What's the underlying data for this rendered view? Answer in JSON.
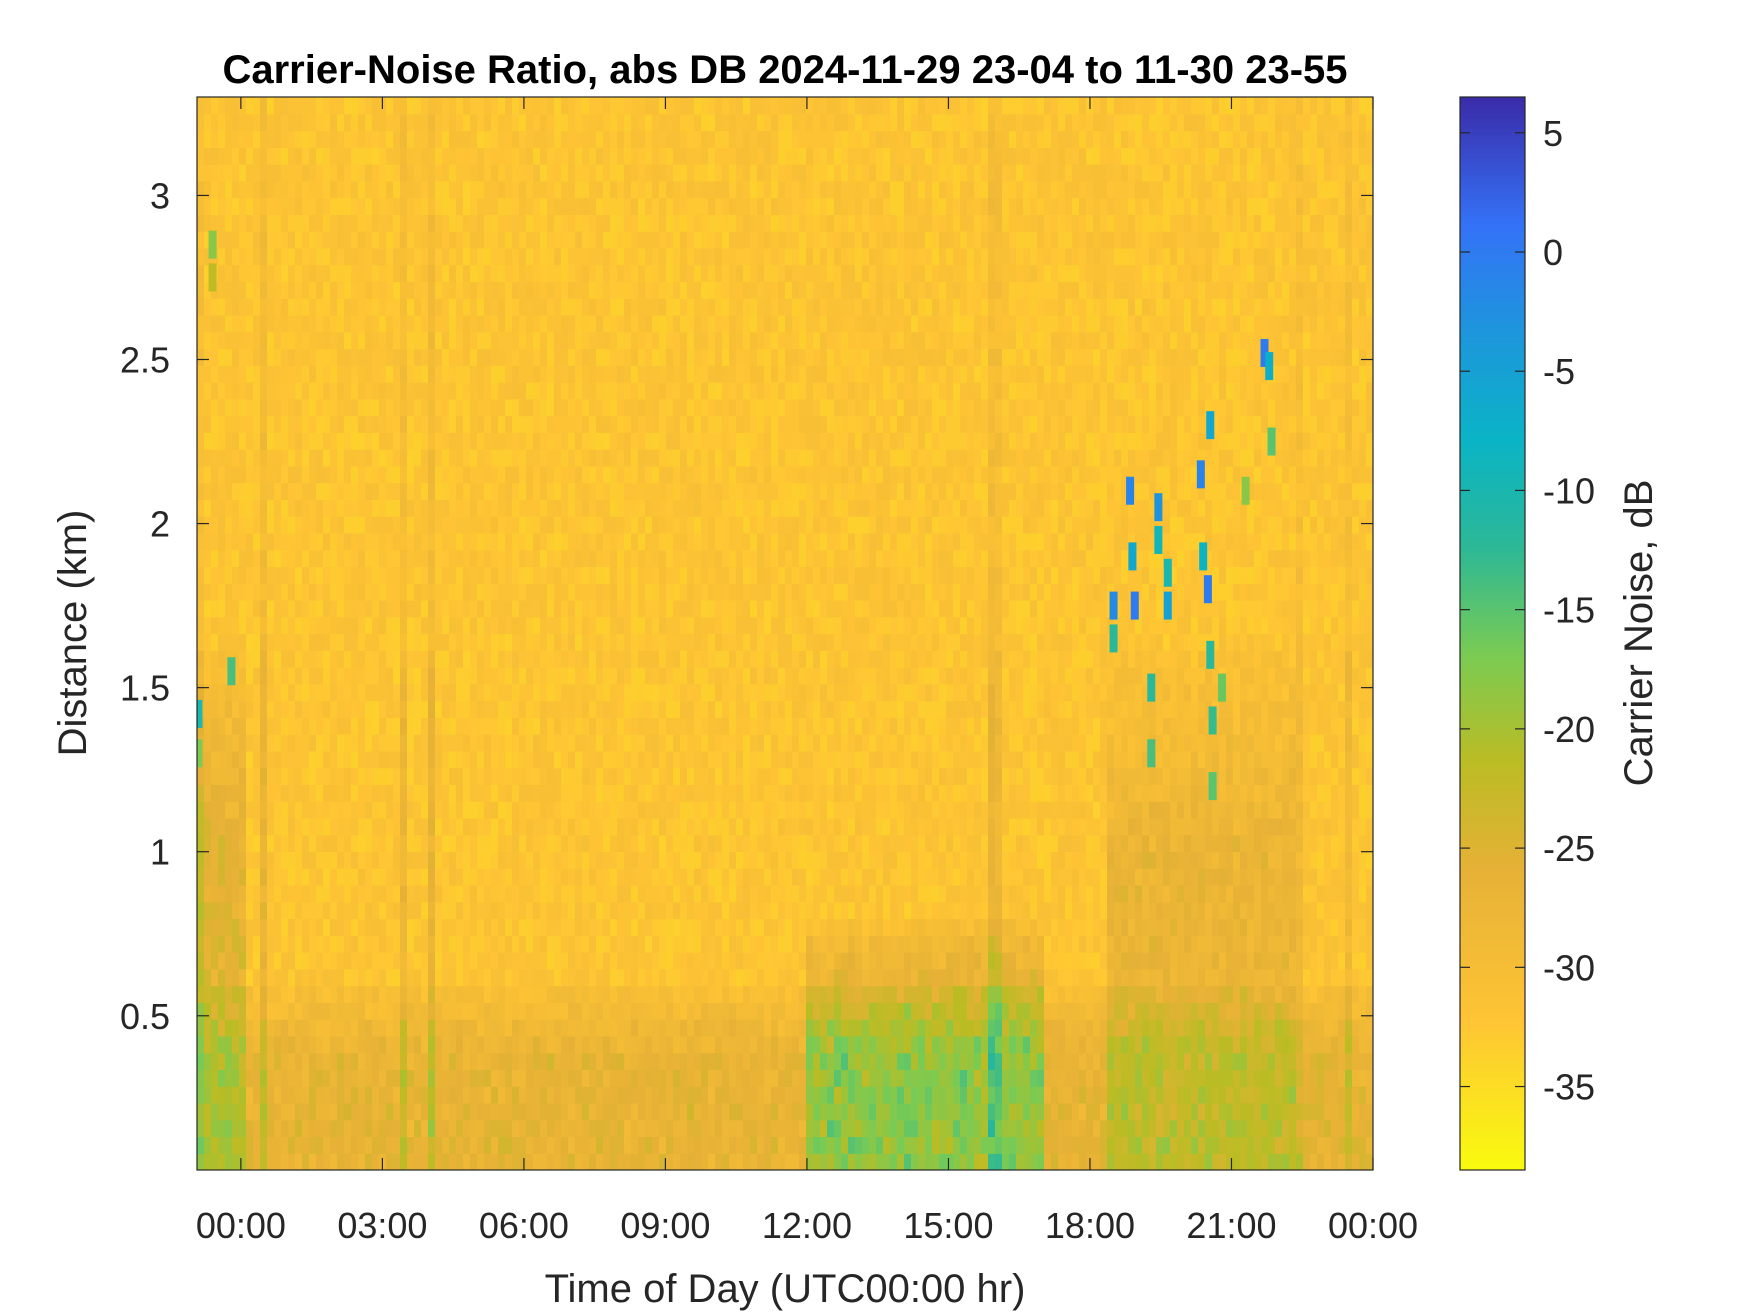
{
  "chart_data": {
    "type": "heatmap",
    "title": "Carrier-Noise Ratio, abs DB 2024-11-29 23-04 to 11-30 23-55",
    "xlabel": "Time of Day (UTC00:00 hr)",
    "ylabel": "Distance (km)",
    "x_ticks": [
      "00:00",
      "03:00",
      "06:00",
      "09:00",
      "12:00",
      "15:00",
      "18:00",
      "21:00",
      "00:00"
    ],
    "x_tick_hours": [
      0,
      3,
      6,
      9,
      12,
      15,
      18,
      21,
      24
    ],
    "xlim_hours": [
      -0.93,
      24.0
    ],
    "y_ticks": [
      "0.5",
      "1",
      "1.5",
      "2",
      "2.5",
      "3"
    ],
    "y_tick_values": [
      0.5,
      1,
      1.5,
      2,
      2.5,
      3
    ],
    "ylim": [
      0.03,
      3.3
    ],
    "colorbar": {
      "label": "Carrier Noise, dB",
      "ticks": [
        "5",
        "0",
        "-5",
        "-10",
        "-15",
        "-20",
        "-25",
        "-30",
        "-35"
      ],
      "tick_values": [
        5,
        0,
        -5,
        -10,
        -15,
        -20,
        -25,
        -30,
        -35
      ],
      "range": [
        -38.5,
        6.5
      ],
      "colormap": "parula"
    },
    "background_level_db": -32,
    "features": [
      {
        "kind": "boundary-layer",
        "description_level_db": -25,
        "t_start": -0.93,
        "t_end": 24.0,
        "top_km": 0.6
      },
      {
        "kind": "afternoon-mixing",
        "level_db": -22,
        "t_start": 12.0,
        "t_end": 17.0,
        "top_km": 0.8
      },
      {
        "kind": "evening-echoes",
        "level_db": -26,
        "t_start": 18.3,
        "t_end": 22.4,
        "top_km": 1.6
      },
      {
        "kind": "early-plume",
        "level_db": -24,
        "t_start": -0.93,
        "t_end": 0.1,
        "top_km": 1.6
      }
    ],
    "cells": [
      {
        "t": -0.9,
        "d": 1.42,
        "v": -10
      },
      {
        "t": -0.9,
        "d": 1.3,
        "v": -17
      },
      {
        "t": -0.6,
        "d": 2.85,
        "v": -18
      },
      {
        "t": -0.6,
        "d": 2.75,
        "v": -22
      },
      {
        "t": -0.2,
        "d": 1.55,
        "v": -14
      },
      {
        "t": 18.5,
        "d": 1.75,
        "v": -2
      },
      {
        "t": 18.5,
        "d": 1.65,
        "v": -12
      },
      {
        "t": 18.85,
        "d": 2.1,
        "v": -1
      },
      {
        "t": 18.9,
        "d": 1.9,
        "v": -6
      },
      {
        "t": 18.95,
        "d": 1.75,
        "v": 0
      },
      {
        "t": 19.3,
        "d": 1.5,
        "v": -12
      },
      {
        "t": 19.3,
        "d": 1.3,
        "v": -14
      },
      {
        "t": 19.45,
        "d": 2.05,
        "v": -3
      },
      {
        "t": 19.45,
        "d": 1.95,
        "v": -9
      },
      {
        "t": 19.65,
        "d": 1.75,
        "v": -5
      },
      {
        "t": 19.65,
        "d": 1.85,
        "v": -10
      },
      {
        "t": 20.35,
        "d": 2.15,
        "v": -1
      },
      {
        "t": 20.4,
        "d": 1.9,
        "v": -8
      },
      {
        "t": 20.5,
        "d": 1.8,
        "v": 0
      },
      {
        "t": 20.55,
        "d": 1.6,
        "v": -12
      },
      {
        "t": 20.6,
        "d": 1.4,
        "v": -13
      },
      {
        "t": 20.6,
        "d": 1.2,
        "v": -15
      },
      {
        "t": 20.55,
        "d": 2.3,
        "v": -6
      },
      {
        "t": 20.8,
        "d": 1.5,
        "v": -16
      },
      {
        "t": 21.3,
        "d": 2.1,
        "v": -18
      },
      {
        "t": 21.7,
        "d": 2.52,
        "v": 0
      },
      {
        "t": 21.8,
        "d": 2.48,
        "v": -7
      },
      {
        "t": 21.85,
        "d": 2.25,
        "v": -15
      }
    ]
  }
}
